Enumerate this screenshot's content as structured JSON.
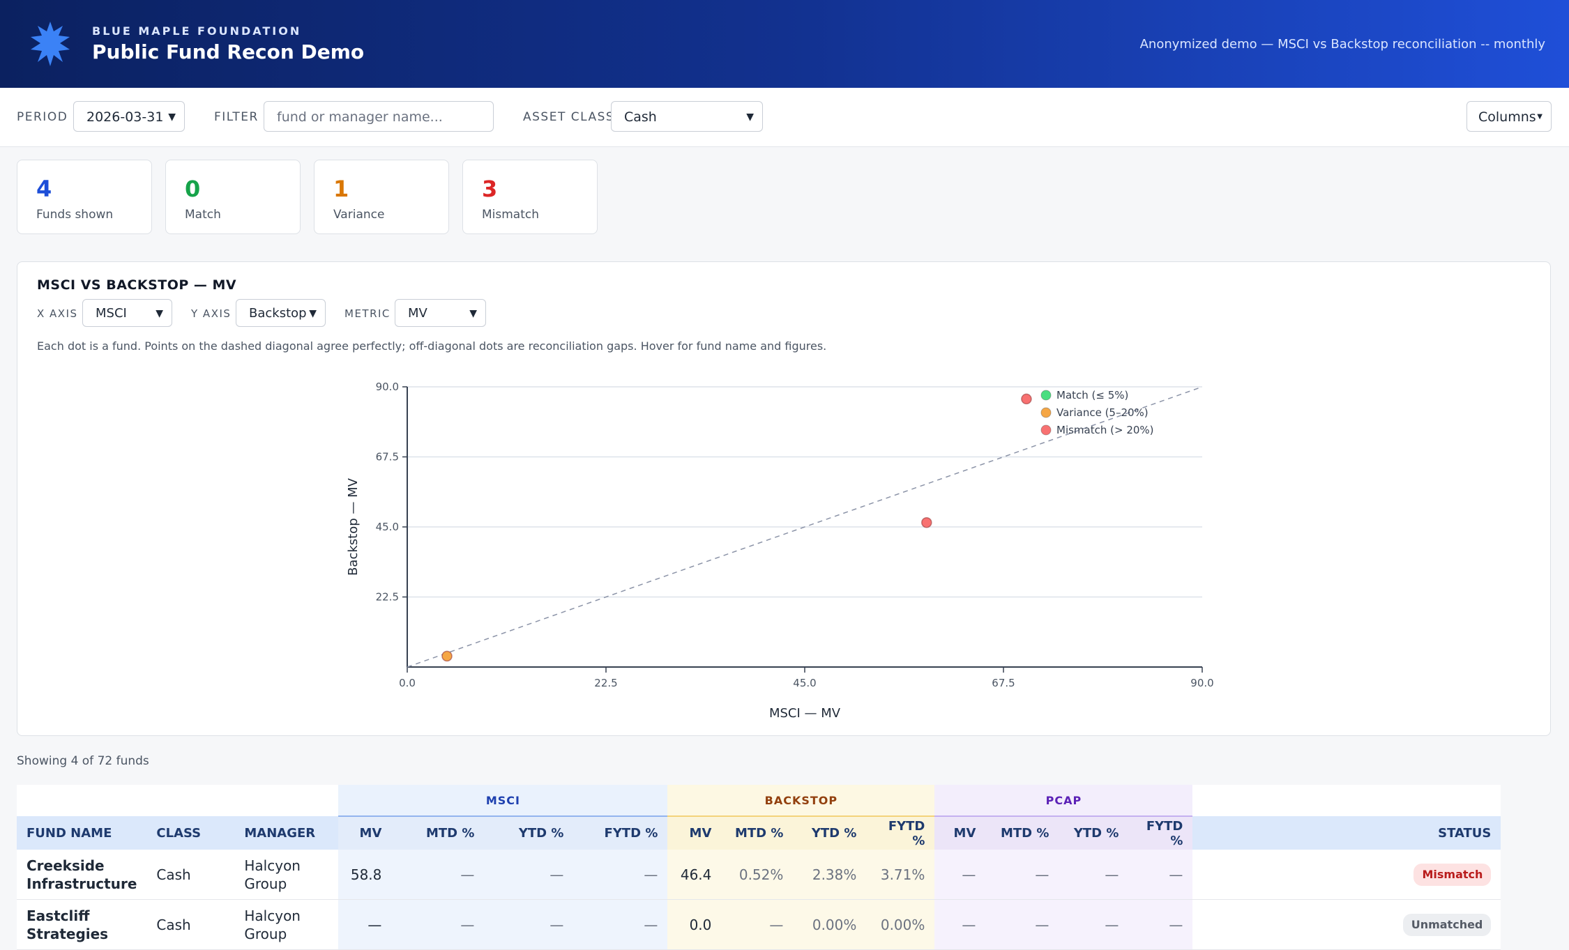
{
  "header": {
    "org": "BLUE MAPLE FOUNDATION",
    "title": "Public Fund Recon Demo",
    "subtitle": "Anonymized demo — MSCI vs Backstop reconciliation -- monthly"
  },
  "toolbar": {
    "period_label": "PERIOD",
    "period": "2026-03-31",
    "filter_label": "FILTER",
    "filter_placeholder": "fund or manager name...",
    "asset_class_label": "ASSET CLASS",
    "asset_class": "Cash",
    "columns": "Columns"
  },
  "kpis": [
    {
      "value": 4,
      "label": "Funds shown",
      "color": "#1d4ed8"
    },
    {
      "value": 0,
      "label": "Match",
      "color": "#16a34a"
    },
    {
      "value": 1,
      "label": "Variance",
      "color": "#d97706"
    },
    {
      "value": 3,
      "label": "Mismatch",
      "color": "#dc2626"
    }
  ],
  "chart_panel": {
    "heading": "MSCI VS BACKSTOP — MV",
    "x_axis_label": "X AXIS",
    "x_axis": "MSCI",
    "y_axis_label": "Y AXIS",
    "y_axis": "Backstop",
    "metric_label": "METRIC",
    "metric": "MV",
    "note": "Each dot is a fund. Points on the dashed diagonal agree perfectly; off-diagonal dots are reconciliation gaps. Hover for fund name and figures."
  },
  "chart_data": {
    "type": "scatter",
    "x_label": "MSCI — MV",
    "y_label": "Backstop — MV",
    "xlim": [
      0,
      90
    ],
    "ylim": [
      0,
      90
    ],
    "xticks": [
      {
        "value": 0,
        "label": "0.0"
      },
      22.5,
      {
        "value": 45,
        "label": "45.0"
      },
      67.5,
      {
        "value": 90,
        "label": "90.0"
      }
    ],
    "yticks": [
      22.5,
      {
        "value": 45,
        "label": "45.0"
      },
      67.5,
      {
        "value": 90,
        "label": "90.0"
      }
    ],
    "grid": true,
    "legend": "top-right",
    "series": [
      {
        "name": "Match (≤ 5%)",
        "color": "#4ade80",
        "x": [],
        "values": []
      },
      {
        "name": "Variance (5–20%)",
        "color": "#f5a645",
        "x": [
          4.5
        ],
        "values": [
          3.5
        ]
      },
      {
        "name": "Mismatch (> 20%)",
        "color": "#f87171",
        "x": [
          58.8,
          70.1
        ],
        "values": [
          46.4,
          86.1
        ]
      }
    ]
  },
  "table": {
    "count_text": "Showing 4 of 72 funds",
    "groups": [
      "MSCI",
      "BACKSTOP",
      "PCAP"
    ],
    "headers": [
      "FUND NAME",
      "CLASS",
      "MANAGER",
      "MV",
      "MTD %",
      "YTD %",
      "FYTD %",
      "MV",
      "MTD %",
      "YTD %",
      "FYTD %",
      "MV",
      "MTD %",
      "YTD %",
      "FYTD %",
      "STATUS"
    ],
    "rows": [
      {
        "cells": [
          "Creekside Infrastructure",
          "Cash",
          "Halcyon Group",
          "58.8",
          "—",
          "—",
          "—",
          "46.4",
          "0.52%",
          "2.38%",
          "3.71%",
          "—",
          "—",
          "—",
          "—"
        ],
        "status": "Mismatch",
        "status_color": "#b91c1c",
        "status_bg": "#fde2e2"
      },
      {
        "cells": [
          "Eastcliff Strategies",
          "Cash",
          "Halcyon Group",
          "—",
          "—",
          "—",
          "—",
          "0.0",
          "—",
          "0.00%",
          "0.00%",
          "—",
          "—",
          "—",
          "—"
        ],
        "status": "Unmatched",
        "status_color": "#555b66",
        "status_bg": "#eceef1"
      }
    ]
  }
}
